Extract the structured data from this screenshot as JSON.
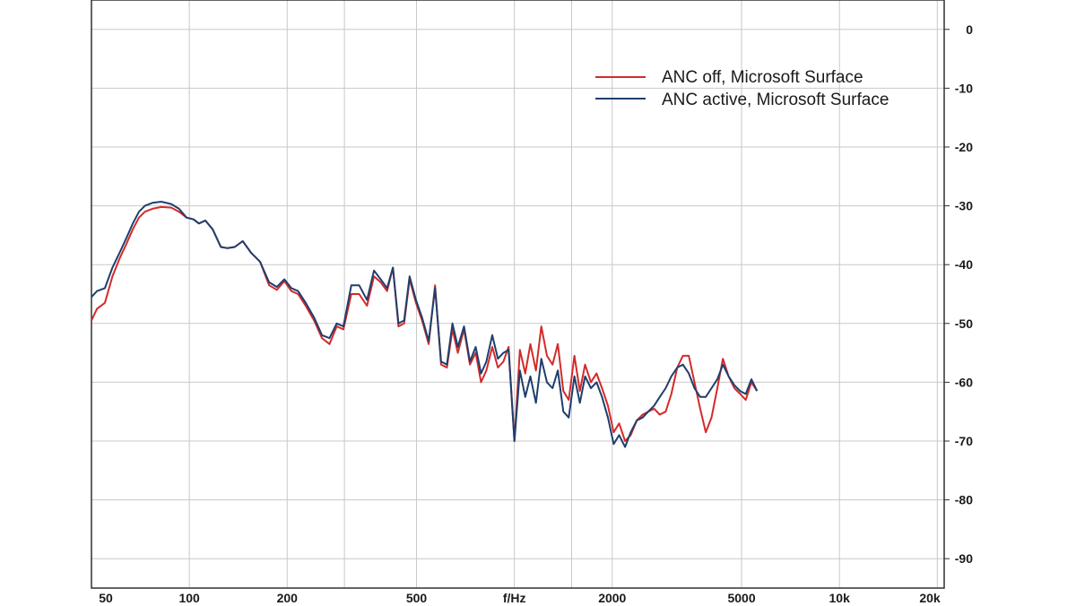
{
  "chart_data": {
    "type": "line",
    "title": "",
    "xlabel": "f/Hz",
    "ylabel": "",
    "x_scale": "log",
    "xlim": [
      50,
      21000
    ],
    "ylim": [
      -95,
      5
    ],
    "grid": true,
    "legend_position": "top-right",
    "x_ticks": [
      {
        "value": 50,
        "label": "50"
      },
      {
        "value": 100,
        "label": "100"
      },
      {
        "value": 200,
        "label": "200"
      },
      {
        "value": 500,
        "label": "500"
      },
      {
        "value": 1000,
        "label": "f/Hz"
      },
      {
        "value": 2000,
        "label": "2000"
      },
      {
        "value": 5000,
        "label": "5000"
      },
      {
        "value": 10000,
        "label": "10k"
      },
      {
        "value": 20000,
        "label": "20k"
      }
    ],
    "x_grid_extra": [
      300,
      1500
    ],
    "y_ticks": [
      0,
      -10,
      -20,
      -30,
      -40,
      -50,
      -60,
      -70,
      -80,
      -90
    ],
    "series": [
      {
        "name": "ANC off, Microsoft Surface",
        "color": "#d42a2a",
        "points": [
          [
            50,
            -49.5
          ],
          [
            52,
            -47.5
          ],
          [
            55,
            -46.5
          ],
          [
            58,
            -42
          ],
          [
            61,
            -39
          ],
          [
            64,
            -36.5
          ],
          [
            67,
            -34
          ],
          [
            70,
            -32
          ],
          [
            73,
            -31
          ],
          [
            77,
            -30.5
          ],
          [
            82,
            -30.2
          ],
          [
            88,
            -30.3
          ],
          [
            93,
            -31
          ],
          [
            98,
            -32
          ],
          [
            103,
            -32.3
          ],
          [
            107,
            -33
          ],
          [
            112,
            -32.5
          ],
          [
            118,
            -34
          ],
          [
            125,
            -37
          ],
          [
            131,
            -37.2
          ],
          [
            138,
            -37
          ],
          [
            146,
            -36
          ],
          [
            155,
            -38
          ],
          [
            165,
            -39.5
          ],
          [
            176,
            -43.5
          ],
          [
            186,
            -44.3
          ],
          [
            196,
            -42.8
          ],
          [
            206,
            -44.5
          ],
          [
            216,
            -45
          ],
          [
            228,
            -47
          ],
          [
            242,
            -49.5
          ],
          [
            256,
            -52.5
          ],
          [
            270,
            -53.5
          ],
          [
            284,
            -50.5
          ],
          [
            298,
            -51
          ],
          [
            315,
            -45
          ],
          [
            333,
            -45
          ],
          [
            352,
            -47
          ],
          [
            370,
            -42
          ],
          [
            388,
            -43
          ],
          [
            406,
            -44.5
          ],
          [
            423,
            -40.5
          ],
          [
            440,
            -50.5
          ],
          [
            458,
            -50
          ],
          [
            476,
            -42.5
          ],
          [
            498,
            -46.5
          ],
          [
            520,
            -49.5
          ],
          [
            545,
            -53.5
          ],
          [
            570,
            -43.5
          ],
          [
            595,
            -57
          ],
          [
            620,
            -57.5
          ],
          [
            645,
            -51
          ],
          [
            670,
            -55
          ],
          [
            700,
            -51
          ],
          [
            730,
            -57
          ],
          [
            760,
            -55
          ],
          [
            790,
            -60
          ],
          [
            820,
            -58
          ],
          [
            855,
            -54
          ],
          [
            890,
            -57.5
          ],
          [
            925,
            -56.5
          ],
          [
            960,
            -54
          ],
          [
            1000,
            -70
          ],
          [
            1040,
            -54.5
          ],
          [
            1080,
            -58.5
          ],
          [
            1120,
            -53.5
          ],
          [
            1165,
            -58
          ],
          [
            1210,
            -50.5
          ],
          [
            1260,
            -55.5
          ],
          [
            1310,
            -57
          ],
          [
            1360,
            -53.5
          ],
          [
            1415,
            -61.5
          ],
          [
            1470,
            -63
          ],
          [
            1530,
            -55.5
          ],
          [
            1590,
            -61.5
          ],
          [
            1650,
            -57
          ],
          [
            1720,
            -60
          ],
          [
            1790,
            -58.5
          ],
          [
            1860,
            -61
          ],
          [
            1940,
            -64
          ],
          [
            2020,
            -68.5
          ],
          [
            2100,
            -67
          ],
          [
            2190,
            -70
          ],
          [
            2280,
            -69
          ],
          [
            2380,
            -66.5
          ],
          [
            2480,
            -65.5
          ],
          [
            2580,
            -65
          ],
          [
            2690,
            -64.5
          ],
          [
            2800,
            -65.5
          ],
          [
            2920,
            -65
          ],
          [
            3040,
            -62
          ],
          [
            3170,
            -57.5
          ],
          [
            3300,
            -55.5
          ],
          [
            3440,
            -55.5
          ],
          [
            3580,
            -60
          ],
          [
            3730,
            -64.5
          ],
          [
            3880,
            -68.5
          ],
          [
            4040,
            -66
          ],
          [
            4210,
            -61
          ],
          [
            4380,
            -56
          ],
          [
            4560,
            -59
          ],
          [
            4750,
            -61
          ],
          [
            4950,
            -62
          ],
          [
            5150,
            -63
          ],
          [
            5360,
            -60
          ],
          [
            5580,
            -61.5
          ]
        ]
      },
      {
        "name": "ANC active, Microsoft Surface",
        "color": "#1f3f6e",
        "points": [
          [
            50,
            -45.5
          ],
          [
            52,
            -44.5
          ],
          [
            55,
            -44
          ],
          [
            58,
            -40.5
          ],
          [
            61,
            -38
          ],
          [
            64,
            -35.5
          ],
          [
            67,
            -33
          ],
          [
            70,
            -31
          ],
          [
            73,
            -30
          ],
          [
            77,
            -29.5
          ],
          [
            82,
            -29.3
          ],
          [
            88,
            -29.7
          ],
          [
            93,
            -30.5
          ],
          [
            98,
            -32
          ],
          [
            103,
            -32.3
          ],
          [
            107,
            -33
          ],
          [
            112,
            -32.5
          ],
          [
            118,
            -34
          ],
          [
            125,
            -37
          ],
          [
            131,
            -37.2
          ],
          [
            138,
            -37
          ],
          [
            146,
            -36
          ],
          [
            155,
            -38
          ],
          [
            165,
            -39.5
          ],
          [
            176,
            -43
          ],
          [
            186,
            -43.8
          ],
          [
            196,
            -42.5
          ],
          [
            206,
            -44
          ],
          [
            216,
            -44.5
          ],
          [
            228,
            -46.5
          ],
          [
            242,
            -49
          ],
          [
            256,
            -52
          ],
          [
            270,
            -52.5
          ],
          [
            284,
            -50
          ],
          [
            298,
            -50.5
          ],
          [
            315,
            -43.5
          ],
          [
            333,
            -43.5
          ],
          [
            352,
            -46
          ],
          [
            370,
            -41
          ],
          [
            388,
            -42.5
          ],
          [
            406,
            -44
          ],
          [
            423,
            -40.5
          ],
          [
            440,
            -50
          ],
          [
            458,
            -49.5
          ],
          [
            476,
            -42
          ],
          [
            498,
            -46
          ],
          [
            520,
            -49
          ],
          [
            545,
            -53
          ],
          [
            570,
            -44
          ],
          [
            595,
            -56.5
          ],
          [
            620,
            -57
          ],
          [
            645,
            -50
          ],
          [
            670,
            -54
          ],
          [
            700,
            -50.5
          ],
          [
            730,
            -56.5
          ],
          [
            760,
            -54
          ],
          [
            790,
            -58.5
          ],
          [
            820,
            -56.5
          ],
          [
            855,
            -52
          ],
          [
            890,
            -56
          ],
          [
            925,
            -55
          ],
          [
            960,
            -54.5
          ],
          [
            1000,
            -70
          ],
          [
            1040,
            -58
          ],
          [
            1080,
            -62.5
          ],
          [
            1120,
            -59
          ],
          [
            1165,
            -63.5
          ],
          [
            1210,
            -56
          ],
          [
            1260,
            -60
          ],
          [
            1310,
            -61
          ],
          [
            1360,
            -58
          ],
          [
            1415,
            -65
          ],
          [
            1470,
            -66
          ],
          [
            1530,
            -59
          ],
          [
            1590,
            -63.5
          ],
          [
            1650,
            -59
          ],
          [
            1720,
            -61
          ],
          [
            1790,
            -60
          ],
          [
            1860,
            -62.5
          ],
          [
            1940,
            -66
          ],
          [
            2020,
            -70.5
          ],
          [
            2100,
            -69
          ],
          [
            2190,
            -71
          ],
          [
            2280,
            -68.5
          ],
          [
            2380,
            -66.5
          ],
          [
            2480,
            -66
          ],
          [
            2580,
            -65
          ],
          [
            2690,
            -64
          ],
          [
            2800,
            -62.5
          ],
          [
            2920,
            -61
          ],
          [
            3040,
            -59
          ],
          [
            3170,
            -57.5
          ],
          [
            3300,
            -57
          ],
          [
            3440,
            -58.5
          ],
          [
            3580,
            -61
          ],
          [
            3730,
            -62.5
          ],
          [
            3880,
            -62.5
          ],
          [
            4040,
            -61
          ],
          [
            4210,
            -59.5
          ],
          [
            4380,
            -57
          ],
          [
            4560,
            -59
          ],
          [
            4750,
            -60.5
          ],
          [
            4950,
            -61.5
          ],
          [
            5150,
            -62
          ],
          [
            5360,
            -59.5
          ],
          [
            5580,
            -61.5
          ]
        ]
      }
    ]
  }
}
